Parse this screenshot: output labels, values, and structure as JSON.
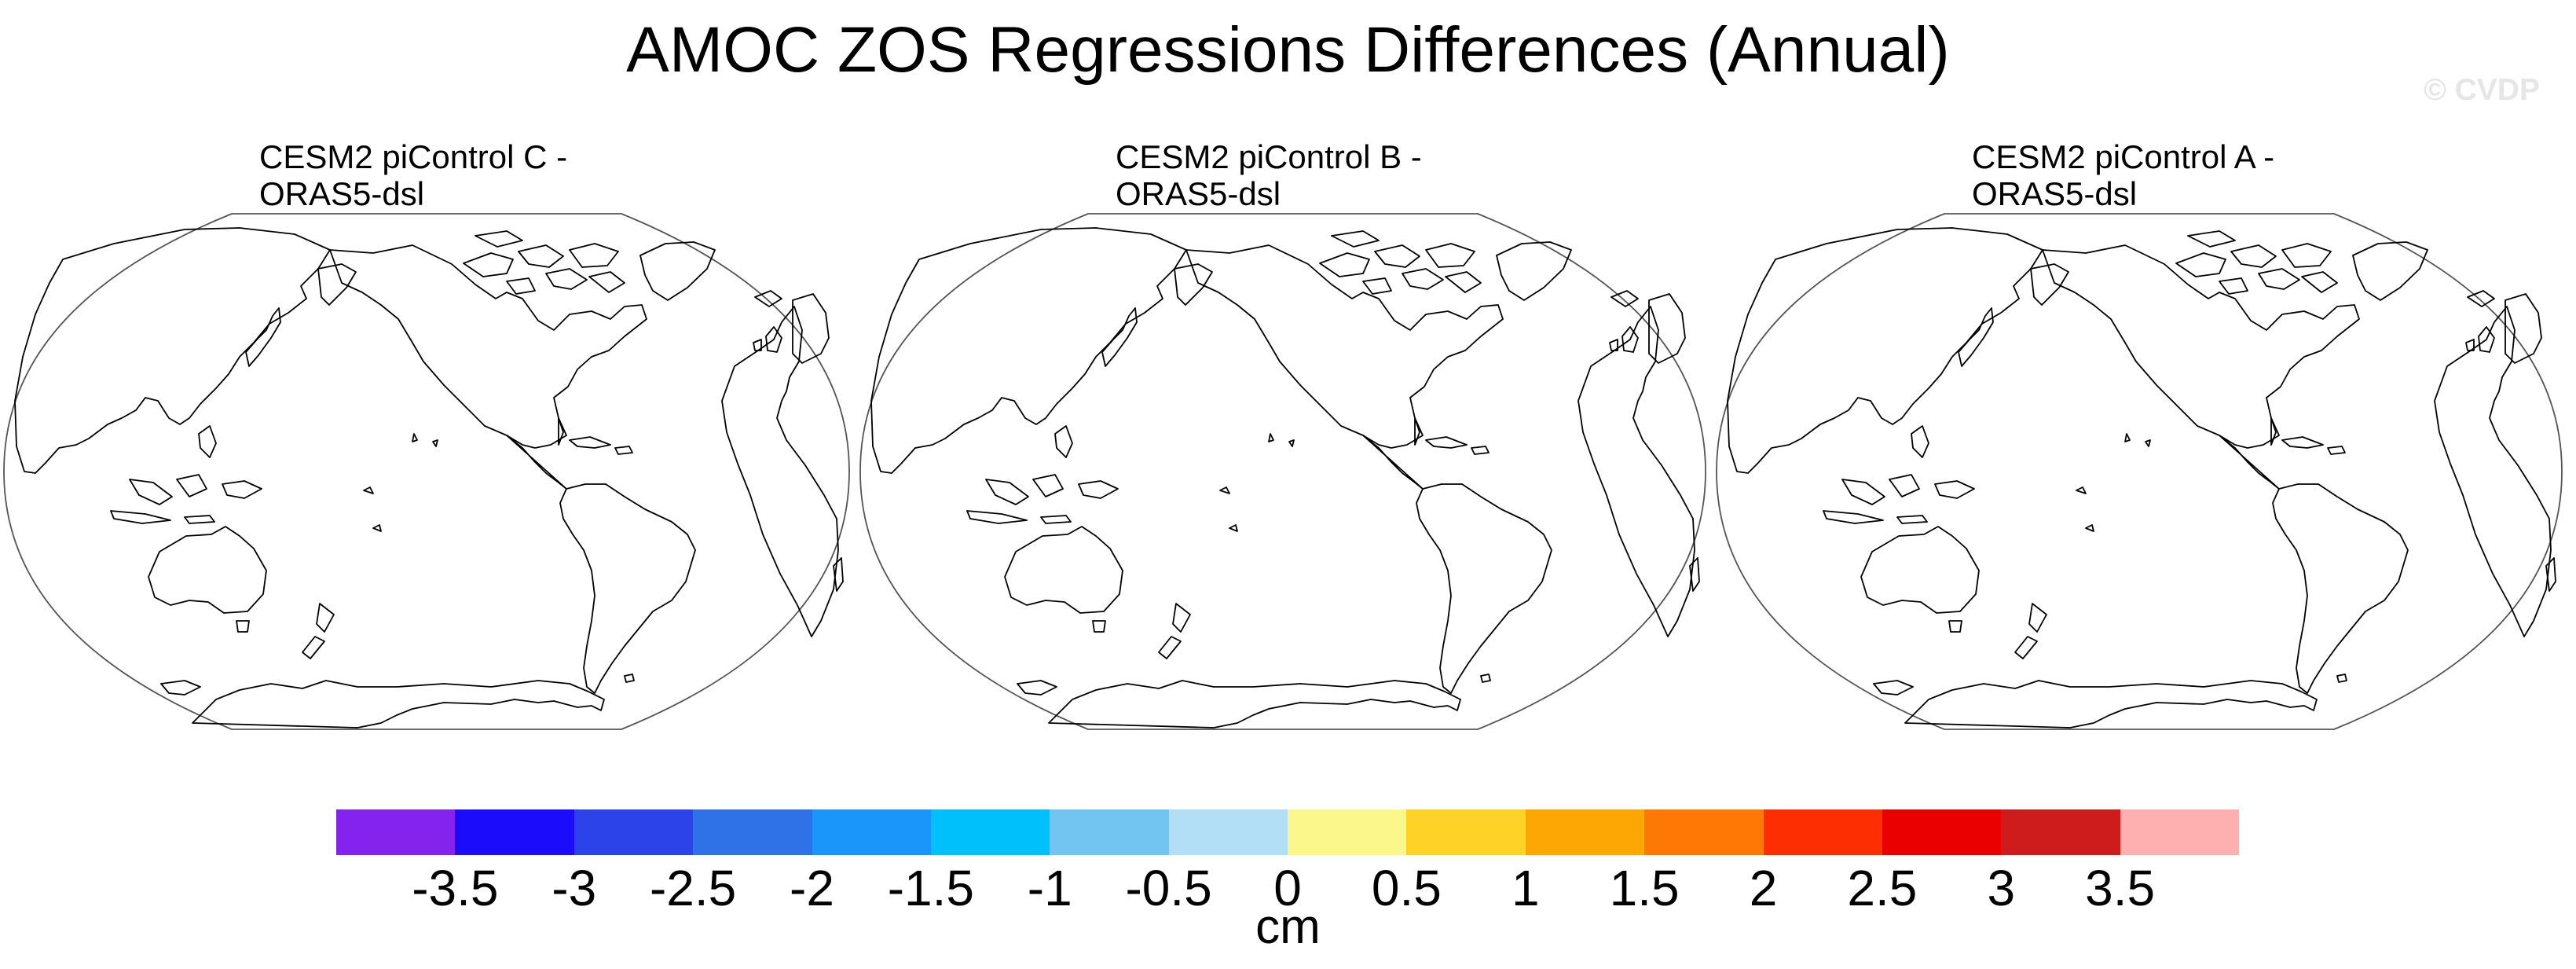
{
  "figure": {
    "title": "AMOC ZOS Regressions Differences (Annual)",
    "watermark": "© CVDP"
  },
  "panels": [
    {
      "title_line1": "CESM2 piControl C -",
      "title_line2": "ORAS5-dsl"
    },
    {
      "title_line1": "CESM2 piControl B -",
      "title_line2": "ORAS5-dsl"
    },
    {
      "title_line1": "CESM2 piControl A -",
      "title_line2": "ORAS5-dsl"
    }
  ],
  "colorbar": {
    "unit": "cm",
    "tick_labels": [
      "-3.5",
      "-3",
      "-2.5",
      "-2",
      "-1.5",
      "-1",
      "-0.5",
      "0",
      "0.5",
      "1",
      "1.5",
      "2",
      "2.5",
      "3",
      "3.5"
    ],
    "colors": [
      "#8422ee",
      "#1b0dfb",
      "#2b43e8",
      "#2f72e8",
      "#1a95f9",
      "#00c0fb",
      "#73c5f1",
      "#b2dff5",
      "#fbf78a",
      "#fed227",
      "#fda704",
      "#fd7804",
      "#fd2e02",
      "#ea0000",
      "#ce1c1c",
      "#feb0b0"
    ]
  },
  "chart_data": {
    "type": "map",
    "title": "AMOC ZOS Regressions Differences (Annual)",
    "projection": "Robinson, centered on the Pacific",
    "panels": [
      {
        "title": "CESM2 piControl C - ORAS5-dsl",
        "field": "no shading visible"
      },
      {
        "title": "CESM2 piControl B - ORAS5-dsl",
        "field": "no shading visible"
      },
      {
        "title": "CESM2 piControl A - ORAS5-dsl",
        "field": "no shading visible"
      }
    ],
    "colorbar": {
      "unit": "cm",
      "levels": [
        -3.5,
        -3,
        -2.5,
        -2,
        -1.5,
        -1,
        -0.5,
        0,
        0.5,
        1,
        1.5,
        2,
        2.5,
        3,
        3.5
      ]
    }
  }
}
